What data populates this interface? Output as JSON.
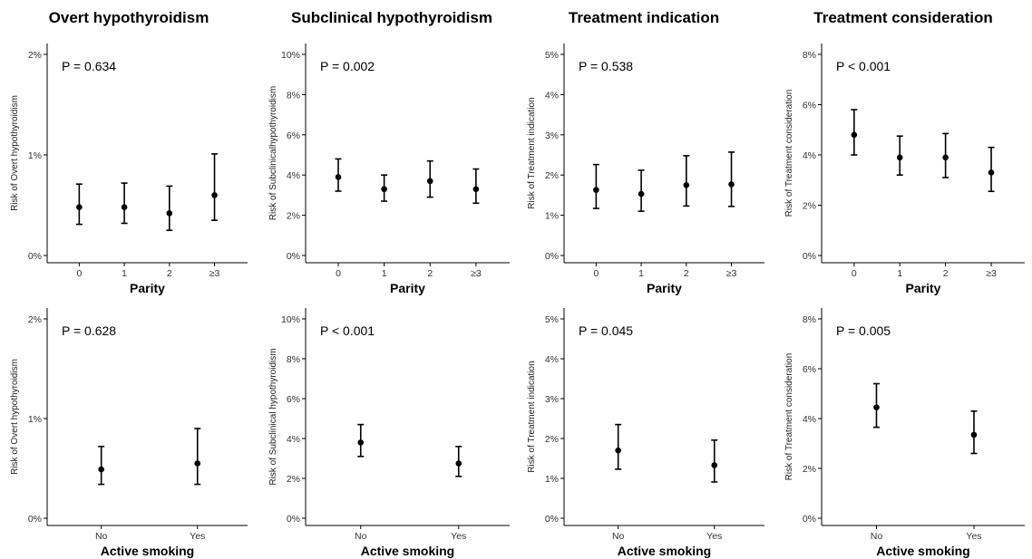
{
  "columns": [
    {
      "title": "Overt hypothyroidism"
    },
    {
      "title": "Subclinical hypothyroidism"
    },
    {
      "title": "Treatment indication"
    },
    {
      "title": "Treatment consideration"
    }
  ],
  "chart_data": [
    {
      "type": "scatter",
      "error_bars": true,
      "title": "Overt hypothyroidism",
      "xlabel": "Parity",
      "ylabel": "Risk of Overt hypothyroidism",
      "categories": [
        "0",
        "1",
        "2",
        "≥3"
      ],
      "ylim": [
        0,
        2
      ],
      "yticks": [
        "0%",
        "1%",
        "2%"
      ],
      "ytick_values": [
        0,
        1,
        2
      ],
      "values": [
        0.48,
        0.48,
        0.42,
        0.6
      ],
      "lower": [
        0.31,
        0.32,
        0.25,
        0.35
      ],
      "upper": [
        0.71,
        0.72,
        0.69,
        1.01
      ],
      "annotation": "P = 0.634"
    },
    {
      "type": "scatter",
      "error_bars": true,
      "title": "Subclinical hypothyroidism",
      "xlabel": "Parity",
      "ylabel": "Risk of Subclinicalhypothyroidism",
      "categories": [
        "0",
        "1",
        "2",
        "≥3"
      ],
      "ylim": [
        0,
        10
      ],
      "yticks": [
        "0%",
        "2%",
        "4%",
        "6%",
        "8%",
        "10%"
      ],
      "ytick_values": [
        0,
        2,
        4,
        6,
        8,
        10
      ],
      "values": [
        3.9,
        3.3,
        3.7,
        3.3
      ],
      "lower": [
        3.2,
        2.7,
        2.9,
        2.6
      ],
      "upper": [
        4.8,
        4.0,
        4.7,
        4.3
      ],
      "annotation": "P = 0.002"
    },
    {
      "type": "scatter",
      "error_bars": true,
      "title": "Treatment indication",
      "xlabel": "Parity",
      "ylabel": "Risk of Treatment indication",
      "categories": [
        "0",
        "1",
        "2",
        "≥3"
      ],
      "ylim": [
        0,
        5
      ],
      "yticks": [
        "0%",
        "1%",
        "2%",
        "3%",
        "4%",
        "5%"
      ],
      "ytick_values": [
        0,
        1,
        2,
        3,
        4,
        5
      ],
      "values": [
        1.63,
        1.53,
        1.75,
        1.77
      ],
      "lower": [
        1.17,
        1.1,
        1.23,
        1.22
      ],
      "upper": [
        2.26,
        2.12,
        2.48,
        2.57
      ],
      "annotation": "P = 0.538"
    },
    {
      "type": "scatter",
      "error_bars": true,
      "title": "Treatment consideration",
      "xlabel": "Parity",
      "ylabel": "Risk of Treatment consideration",
      "categories": [
        "0",
        "1",
        "2",
        "≥3"
      ],
      "ylim": [
        0,
        8
      ],
      "yticks": [
        "0%",
        "2%",
        "4%",
        "6%",
        "8%"
      ],
      "ytick_values": [
        0,
        2,
        4,
        6,
        8
      ],
      "values": [
        4.8,
        3.9,
        3.9,
        3.3
      ],
      "lower": [
        4.0,
        3.2,
        3.1,
        2.55
      ],
      "upper": [
        5.8,
        4.75,
        4.85,
        4.3
      ],
      "annotation": "P < 0.001"
    },
    {
      "type": "scatter",
      "error_bars": true,
      "title": "",
      "xlabel": "Active smoking",
      "ylabel": "Risk of Overt hypothyroidism",
      "categories": [
        "No",
        "Yes"
      ],
      "ylim": [
        0,
        2
      ],
      "yticks": [
        "0%",
        "1%",
        "2%"
      ],
      "ytick_values": [
        0,
        1,
        2
      ],
      "values": [
        0.49,
        0.55
      ],
      "lower": [
        0.34,
        0.34
      ],
      "upper": [
        0.72,
        0.9
      ],
      "annotation": "P = 0.628"
    },
    {
      "type": "scatter",
      "error_bars": true,
      "title": "",
      "xlabel": "Active smoking",
      "ylabel": "Risk of Subclinical hypothyroidism",
      "categories": [
        "No",
        "Yes"
      ],
      "ylim": [
        0,
        10
      ],
      "yticks": [
        "0%",
        "2%",
        "4%",
        "6%",
        "8%",
        "10%"
      ],
      "ytick_values": [
        0,
        2,
        4,
        6,
        8,
        10
      ],
      "values": [
        3.8,
        2.75
      ],
      "lower": [
        3.1,
        2.1
      ],
      "upper": [
        4.7,
        3.6
      ],
      "annotation": "P < 0.001"
    },
    {
      "type": "scatter",
      "error_bars": true,
      "title": "",
      "xlabel": "Active smoking",
      "ylabel": "Risk of Treatment indication",
      "categories": [
        "No",
        "Yes"
      ],
      "ylim": [
        0,
        5
      ],
      "yticks": [
        "0%",
        "1%",
        "2%",
        "3%",
        "4%",
        "5%"
      ],
      "ytick_values": [
        0,
        1,
        2,
        3,
        4,
        5
      ],
      "values": [
        1.7,
        1.33
      ],
      "lower": [
        1.23,
        0.91
      ],
      "upper": [
        2.35,
        1.96
      ],
      "annotation": "P = 0.045"
    },
    {
      "type": "scatter",
      "error_bars": true,
      "title": "",
      "xlabel": "Active smoking",
      "ylabel": "Risk of Treatment consideration",
      "categories": [
        "No",
        "Yes"
      ],
      "ylim": [
        0,
        8
      ],
      "yticks": [
        "0%",
        "2%",
        "4%",
        "6%",
        "8%"
      ],
      "ytick_values": [
        0,
        2,
        4,
        6,
        8
      ],
      "values": [
        4.45,
        3.35
      ],
      "lower": [
        3.65,
        2.6
      ],
      "upper": [
        5.4,
        4.3
      ],
      "annotation": "P = 0.005"
    }
  ]
}
